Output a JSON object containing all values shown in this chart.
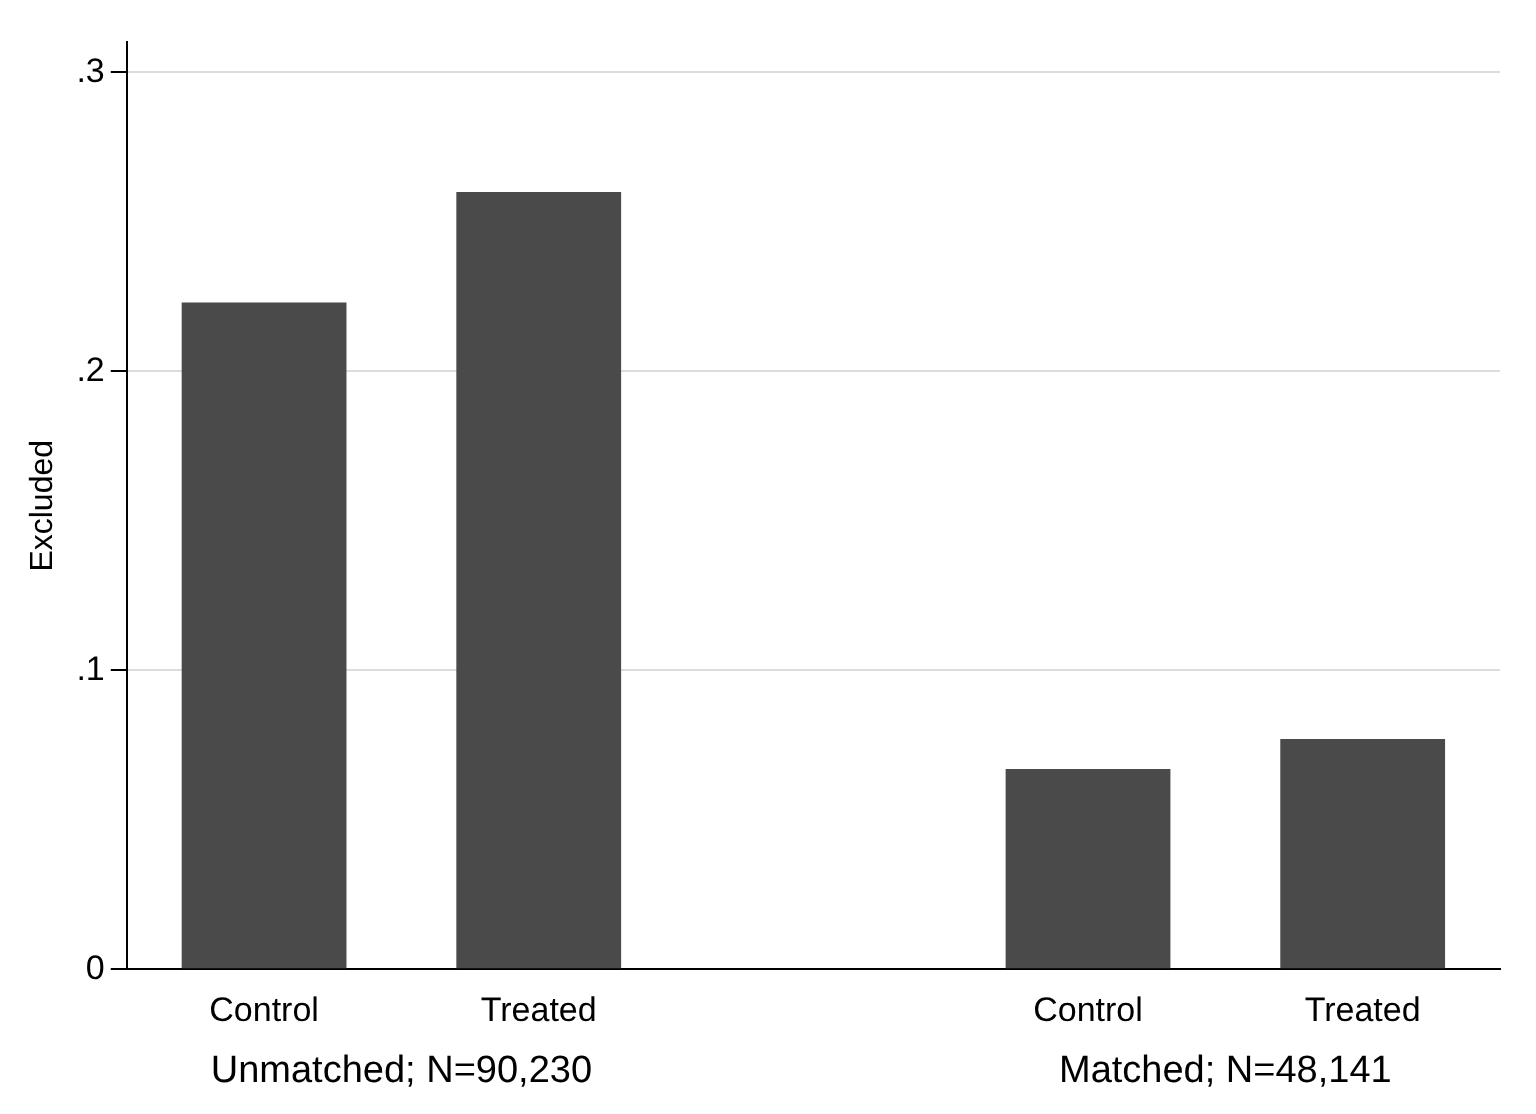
{
  "chart_data": {
    "type": "bar",
    "ylabel": "Excluded",
    "categories": [
      "Control",
      "Treated",
      null,
      "Control",
      "Treated"
    ],
    "values": [
      0.223,
      0.26,
      null,
      0.067,
      0.077
    ],
    "color": "#4a4a4a",
    "ylim": [
      0,
      0.31
    ],
    "yticks": [
      0,
      {
        "value": 0.1,
        "label": ".1"
      },
      {
        "value": 0.2,
        "label": ".2"
      },
      {
        "value": 0.3,
        "label": ".3"
      }
    ],
    "grid": "y",
    "annotations": [
      "Unmatched; N=90,230",
      "Matched; N=48,141"
    ]
  }
}
